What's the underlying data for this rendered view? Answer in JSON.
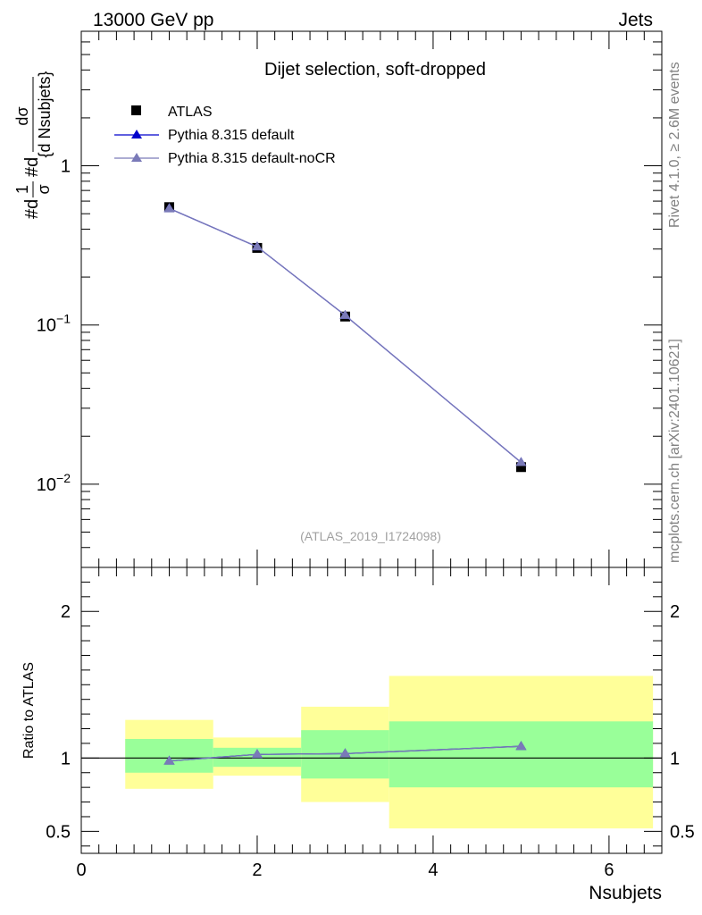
{
  "header": {
    "left": "13000 GeV pp",
    "right": "Jets"
  },
  "side_labels": {
    "rivet": "Rivet 4.1.0, ≥ 2.6M events",
    "mcplots": "mcplots.cern.ch [arXiv:2401.10621]"
  },
  "colors": {
    "data": "#000000",
    "pythia_default": "#0000cc",
    "pythia_nocr": "#7a7ab8",
    "band_inner": "#99ff99",
    "band_outer": "#ffff99"
  },
  "chart_data": [
    {
      "type": "scatter",
      "panel": "main",
      "title": "Dijet selection, soft-dropped",
      "ylabel": "#d¹/σ #d dσ/{d Nsubjets}",
      "ylabel_parts": {
        "prefix": "#d",
        "frac1_num": "1",
        "frac1_den": "σ",
        "middle": "#d",
        "frac2_num": "dσ",
        "frac2_den": "{d Nsubjets}"
      },
      "yscale": "log",
      "ylim": [
        0.003,
        7
      ],
      "xlim": [
        0,
        6.6
      ],
      "y_tick_labels": [
        {
          "value": 1,
          "base": "1",
          "exp": ""
        },
        {
          "value": 0.1,
          "base": "10",
          "exp": "−1"
        },
        {
          "value": 0.01,
          "base": "10",
          "exp": "−2"
        }
      ],
      "watermark": "(ATLAS_2019_I1724098)",
      "legend_position": "top-left",
      "series": [
        {
          "name": "ATLAS",
          "marker": "square",
          "x": [
            1,
            2,
            3,
            5
          ],
          "y": [
            0.55,
            0.305,
            0.113,
            0.0128
          ]
        },
        {
          "name": "Pythia 8.315 default",
          "marker": "triangle",
          "x": [
            1,
            2,
            3,
            5
          ],
          "y": [
            0.54,
            0.31,
            0.115,
            0.0137
          ]
        },
        {
          "name": "Pythia 8.315 default-noCR",
          "marker": "triangle",
          "x": [
            1,
            2,
            3,
            5
          ],
          "y": [
            0.54,
            0.31,
            0.115,
            0.0137
          ]
        }
      ]
    },
    {
      "type": "line",
      "panel": "ratio",
      "ylabel": "Ratio to ATLAS",
      "xlabel": "Nsubjets",
      "ylim": [
        0.35,
        2.3
      ],
      "xlim": [
        0,
        6.6
      ],
      "x_ticks": [
        0,
        2,
        4,
        6
      ],
      "y_ticks": [
        0.5,
        1,
        2
      ],
      "bins": [
        {
          "x_lo": 0.5,
          "x_hi": 1.5,
          "inner": [
            0.9,
            1.13
          ],
          "outer": [
            0.79,
            1.26
          ]
        },
        {
          "x_lo": 1.5,
          "x_hi": 2.5,
          "inner": [
            0.94,
            1.07
          ],
          "outer": [
            0.88,
            1.14
          ]
        },
        {
          "x_lo": 2.5,
          "x_hi": 3.5,
          "inner": [
            0.86,
            1.19
          ],
          "outer": [
            0.7,
            1.35
          ]
        },
        {
          "x_lo": 3.5,
          "x_hi": 6.5,
          "inner": [
            0.8,
            1.25
          ],
          "outer": [
            0.52,
            1.56
          ]
        }
      ],
      "series": [
        {
          "name": "Pythia 8.315 default",
          "x": [
            1,
            2,
            3,
            5
          ],
          "y": [
            0.98,
            1.025,
            1.03,
            1.08
          ]
        },
        {
          "name": "Pythia 8.315 default-noCR",
          "x": [
            1,
            2,
            3,
            5
          ],
          "y": [
            0.98,
            1.025,
            1.03,
            1.08
          ]
        }
      ]
    }
  ]
}
